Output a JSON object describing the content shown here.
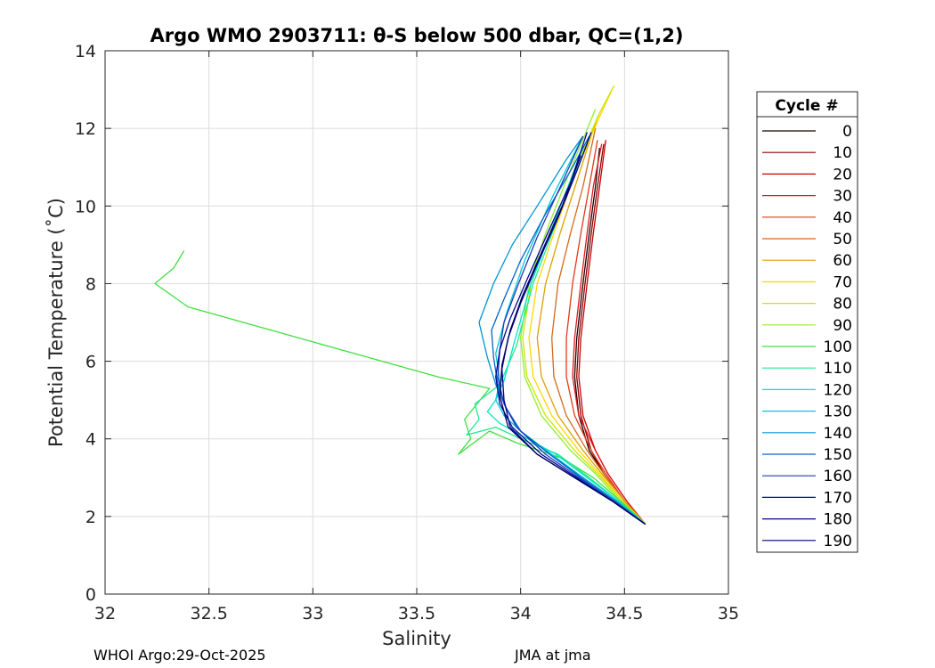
{
  "chart_data": {
    "type": "line",
    "title": "Argo WMO 2903711: θ-S below 500 dbar,  QC=(1,2)",
    "xlabel": "Salinity",
    "ylabel": "Potential Temperature (˚C)",
    "xlim": [
      32,
      35
    ],
    "ylim": [
      0,
      14
    ],
    "xticks": [
      32,
      32.5,
      33,
      33.5,
      34,
      34.5,
      35
    ],
    "xtick_labels": [
      "32",
      "32.5",
      "33",
      "33.5",
      "34",
      "34.5",
      "35"
    ],
    "yticks": [
      0,
      2,
      4,
      6,
      8,
      10,
      12,
      14
    ],
    "ytick_labels": [
      "0",
      "2",
      "4",
      "6",
      "8",
      "10",
      "12",
      "14"
    ],
    "grid": true,
    "legend_title": "Cycle #",
    "legend_position": "right",
    "legend_entries": [
      {
        "label": "0",
        "color": "#1a0000"
      },
      {
        "label": "10",
        "color": "#8b0000"
      },
      {
        "label": "20",
        "color": "#c80000"
      },
      {
        "label": "30",
        "color": "#e31a1c"
      },
      {
        "label": "40",
        "color": "#e03a1a"
      },
      {
        "label": "50",
        "color": "#d2691e"
      },
      {
        "label": "60",
        "color": "#e0a000"
      },
      {
        "label": "70",
        "color": "#ffd700"
      },
      {
        "label": "80",
        "color": "#c8e600"
      },
      {
        "label": "90",
        "color": "#90ee30"
      },
      {
        "label": "100",
        "color": "#40e040"
      },
      {
        "label": "110",
        "color": "#20e890"
      },
      {
        "label": "120",
        "color": "#00e5c8"
      },
      {
        "label": "130",
        "color": "#00c8d8"
      },
      {
        "label": "140",
        "color": "#0096d2"
      },
      {
        "label": "150",
        "color": "#0064c8"
      },
      {
        "label": "160",
        "color": "#1e3cb4"
      },
      {
        "label": "170",
        "color": "#000a96"
      },
      {
        "label": "180",
        "color": "#00008c"
      },
      {
        "label": "190",
        "color": "#000064"
      }
    ],
    "series": [
      {
        "name": "0",
        "color": "#1a0000",
        "x": [
          34.6,
          34.5,
          34.4,
          34.33,
          34.28,
          34.26,
          34.27,
          34.3,
          34.33,
          34.36,
          34.38
        ],
        "y": [
          1.8,
          2.4,
          3.1,
          3.7,
          4.6,
          5.6,
          6.6,
          8.0,
          9.3,
          10.5,
          11.5
        ]
      },
      {
        "name": "10",
        "color": "#8b0000",
        "x": [
          34.6,
          34.5,
          34.4,
          34.34,
          34.29,
          34.27,
          34.28,
          34.31,
          34.34,
          34.37,
          34.4
        ],
        "y": [
          1.8,
          2.4,
          3.1,
          3.7,
          4.6,
          5.6,
          6.6,
          8.0,
          9.3,
          10.5,
          11.6
        ]
      },
      {
        "name": "20",
        "color": "#c80000",
        "x": [
          34.6,
          34.51,
          34.42,
          34.36,
          34.3,
          34.28,
          34.29,
          34.32,
          34.35,
          34.38,
          34.41
        ],
        "y": [
          1.8,
          2.4,
          3.1,
          3.7,
          4.6,
          5.6,
          6.6,
          8.0,
          9.3,
          10.5,
          11.7
        ]
      },
      {
        "name": "30",
        "color": "#e31a1c",
        "x": [
          34.6,
          34.51,
          34.42,
          34.36,
          34.28,
          34.25,
          34.26,
          34.29,
          34.32,
          34.35,
          34.39
        ],
        "y": [
          1.8,
          2.4,
          3.1,
          3.7,
          4.6,
          5.6,
          6.6,
          8.0,
          9.3,
          10.5,
          11.6
        ]
      },
      {
        "name": "40",
        "color": "#e03a1a",
        "x": [
          34.6,
          34.5,
          34.41,
          34.34,
          34.26,
          34.22,
          34.22,
          34.25,
          34.29,
          34.33,
          34.37
        ],
        "y": [
          1.8,
          2.4,
          3.1,
          3.7,
          4.6,
          5.6,
          6.6,
          8.0,
          9.3,
          10.5,
          11.7
        ]
      },
      {
        "name": "50",
        "color": "#d2691e",
        "x": [
          34.6,
          34.5,
          34.4,
          34.32,
          34.22,
          34.16,
          34.15,
          34.18,
          34.24,
          34.3,
          34.36
        ],
        "y": [
          1.8,
          2.4,
          3.1,
          3.7,
          4.6,
          5.6,
          6.6,
          8.0,
          9.3,
          10.5,
          12.0
        ]
      },
      {
        "name": "60",
        "color": "#e0a000",
        "x": [
          34.6,
          34.5,
          34.39,
          34.3,
          34.18,
          34.1,
          34.08,
          34.12,
          34.19,
          34.28,
          34.37
        ],
        "y": [
          1.8,
          2.4,
          3.1,
          3.7,
          4.6,
          5.6,
          6.6,
          8.0,
          9.3,
          10.8,
          12.3
        ]
      },
      {
        "name": "70",
        "color": "#ffd700",
        "x": [
          34.6,
          34.49,
          34.38,
          34.28,
          34.15,
          34.06,
          34.04,
          34.08,
          34.16,
          34.26,
          34.38,
          34.44
        ],
        "y": [
          1.8,
          2.4,
          3.1,
          3.7,
          4.6,
          5.6,
          6.6,
          8.0,
          9.3,
          10.8,
          12.3,
          13.0
        ]
      },
      {
        "name": "80",
        "color": "#c8e600",
        "x": [
          34.6,
          34.49,
          34.37,
          34.26,
          34.12,
          34.03,
          34.01,
          34.05,
          34.14,
          34.25,
          34.38,
          34.45
        ],
        "y": [
          1.8,
          2.4,
          3.1,
          3.7,
          4.6,
          5.6,
          6.6,
          8.0,
          9.3,
          10.8,
          12.4,
          13.1
        ]
      },
      {
        "name": "90",
        "color": "#90ee30",
        "x": [
          34.6,
          34.48,
          34.36,
          34.24,
          34.1,
          34.02,
          34.0,
          34.04,
          34.12,
          34.23,
          34.36
        ],
        "y": [
          1.8,
          2.4,
          3.1,
          3.7,
          4.6,
          5.6,
          6.6,
          8.0,
          9.3,
          10.8,
          12.5
        ]
      },
      {
        "name": "100",
        "color": "#40e040",
        "x": [
          34.6,
          34.48,
          34.35,
          34.2,
          33.98,
          33.85,
          33.7,
          33.76,
          33.73,
          33.85,
          33.6,
          33.2,
          32.4,
          32.24,
          32.33,
          32.38
        ],
        "y": [
          1.8,
          2.4,
          3.0,
          3.5,
          3.9,
          4.2,
          3.6,
          4.0,
          4.5,
          5.3,
          5.6,
          6.2,
          7.4,
          8.0,
          8.4,
          8.85
        ]
      },
      {
        "name": "110",
        "color": "#20e890",
        "x": [
          34.6,
          34.47,
          34.33,
          34.18,
          34.0,
          33.88,
          33.74,
          33.8,
          33.78,
          33.9,
          33.98,
          34.06,
          34.18,
          34.32
        ],
        "y": [
          1.8,
          2.4,
          3.0,
          3.6,
          4.0,
          4.3,
          4.1,
          4.5,
          4.9,
          5.4,
          6.4,
          8.0,
          9.7,
          11.6
        ]
      },
      {
        "name": "120",
        "color": "#00e5c8",
        "x": [
          34.6,
          34.47,
          34.32,
          34.17,
          34.0,
          33.9,
          33.84,
          33.88,
          33.92,
          33.97,
          34.05,
          34.17,
          34.3
        ],
        "y": [
          1.8,
          2.4,
          3.0,
          3.6,
          4.1,
          4.4,
          4.7,
          5.0,
          5.5,
          6.5,
          8.0,
          9.7,
          11.5
        ]
      },
      {
        "name": "130",
        "color": "#00c8d8",
        "x": [
          34.6,
          34.46,
          34.3,
          34.15,
          34.0,
          33.92,
          33.88,
          33.9,
          33.88,
          33.93,
          34.02,
          34.15,
          34.29
        ],
        "y": [
          1.8,
          2.4,
          3.0,
          3.6,
          4.2,
          4.6,
          5.0,
          5.5,
          6.2,
          7.2,
          8.6,
          10.2,
          11.7
        ]
      },
      {
        "name": "140",
        "color": "#0096d2",
        "x": [
          34.6,
          34.46,
          34.3,
          34.14,
          34.0,
          33.93,
          33.88,
          33.84,
          33.8,
          33.87,
          33.96,
          34.08,
          34.22,
          34.3
        ],
        "y": [
          1.8,
          2.4,
          3.0,
          3.6,
          4.2,
          4.8,
          5.4,
          6.1,
          7.0,
          8.0,
          9.0,
          10.0,
          11.2,
          11.8
        ]
      },
      {
        "name": "150",
        "color": "#0064c8",
        "x": [
          34.6,
          34.45,
          34.29,
          34.14,
          34.0,
          33.93,
          33.89,
          33.87,
          33.86,
          33.92,
          34.0,
          34.12,
          34.25,
          34.33
        ],
        "y": [
          1.8,
          2.4,
          3.0,
          3.6,
          4.2,
          4.8,
          5.4,
          6.1,
          6.8,
          7.6,
          8.6,
          9.8,
          11.0,
          11.8
        ]
      },
      {
        "name": "160",
        "color": "#1e3cb4",
        "x": [
          34.6,
          34.45,
          34.28,
          34.12,
          33.98,
          33.92,
          33.89,
          33.9,
          33.92,
          33.99,
          34.08,
          34.2,
          34.3
        ],
        "y": [
          1.8,
          2.4,
          3.0,
          3.6,
          4.3,
          4.9,
          5.6,
          6.3,
          7.0,
          8.0,
          9.2,
          10.6,
          11.8
        ]
      },
      {
        "name": "170",
        "color": "#000a96",
        "x": [
          34.6,
          34.44,
          34.27,
          34.1,
          33.96,
          33.9,
          33.88,
          33.9,
          33.95,
          34.03,
          34.13,
          34.24,
          34.32
        ],
        "y": [
          1.8,
          2.4,
          3.0,
          3.6,
          4.3,
          4.9,
          5.6,
          6.3,
          7.1,
          8.1,
          9.3,
          10.6,
          11.9
        ]
      },
      {
        "name": "180",
        "color": "#00008c",
        "x": [
          34.6,
          34.44,
          34.26,
          34.08,
          33.95,
          33.92,
          33.91,
          33.94,
          34.0,
          34.08,
          34.18,
          34.27,
          34.34
        ],
        "y": [
          1.8,
          2.4,
          3.0,
          3.6,
          4.3,
          5.0,
          5.8,
          6.6,
          7.5,
          8.5,
          9.7,
          10.9,
          11.9
        ]
      },
      {
        "name": "190",
        "color": "#000064",
        "x": [
          34.6,
          34.44,
          34.26,
          34.08,
          33.94,
          33.9,
          33.91,
          33.95,
          34.01,
          34.1,
          34.2,
          34.29
        ],
        "y": [
          1.8,
          2.4,
          3.0,
          3.6,
          4.3,
          5.1,
          5.9,
          6.8,
          7.7,
          8.8,
          10.0,
          11.3
        ]
      }
    ]
  },
  "footer": {
    "left": "WHOI Argo:29-Oct-2025",
    "right": "JMA at jma"
  }
}
